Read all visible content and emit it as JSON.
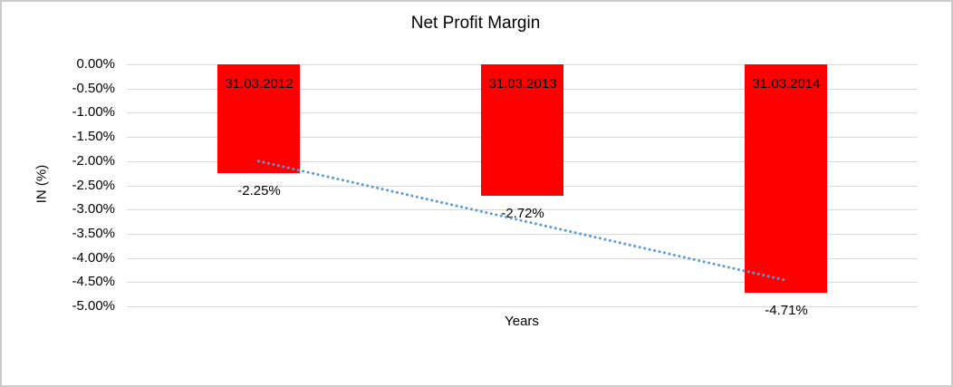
{
  "chart_data": {
    "type": "bar",
    "title": "Net Profit Margin",
    "xlabel": "Years",
    "ylabel": "IN (%)",
    "categories": [
      "31.03.2012",
      "31.03.2013",
      "31.03.2014"
    ],
    "values": [
      -2.25,
      -2.72,
      -4.71
    ],
    "data_labels": [
      "-2.25%",
      "-2.72%",
      "-4.71%"
    ],
    "ytick_labels": [
      "0.00%",
      "-0.50%",
      "-1.00%",
      "-1.50%",
      "-2.00%",
      "-2.50%",
      "-3.00%",
      "-3.50%",
      "-4.00%",
      "-4.50%",
      "-5.00%"
    ],
    "ylim": [
      -5,
      0
    ],
    "ytick_step": 0.5,
    "grid": true,
    "legend": "none",
    "bar_color": "#ff0000",
    "gridline_color": "#d9d9d9",
    "trendline": {
      "type": "linear",
      "style": "dotted",
      "color": "#5b9bd5",
      "start_value": -2.0,
      "end_value": -4.46
    }
  }
}
